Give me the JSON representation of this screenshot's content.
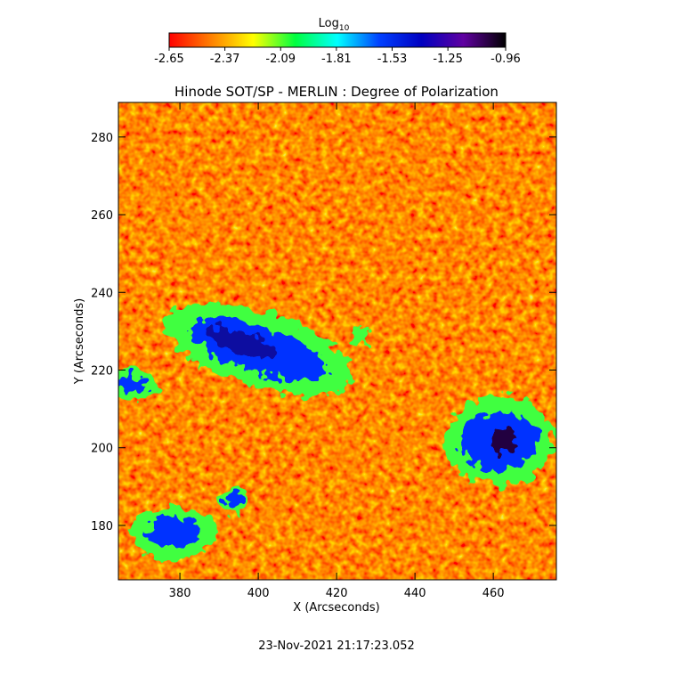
{
  "chart_data": {
    "type": "heatmap",
    "title": "Hinode SOT/SP - MERLIN : Degree of Polarization",
    "x_label": "X (Arcseconds)",
    "y_label": "Y (Arcseconds)",
    "xlim": [
      364.3,
      476.1
    ],
    "ylim": [
      166.0,
      288.9
    ],
    "xticks": [
      380,
      400,
      420,
      440,
      460
    ],
    "yticks": [
      180,
      200,
      220,
      240,
      260,
      280
    ],
    "colorbar": {
      "label": "Log",
      "label_subscript": "10",
      "lim": [
        -2.65,
        -0.96
      ],
      "ticks": [
        -2.65,
        -2.37,
        -2.09,
        -1.81,
        -1.53,
        -1.25,
        -0.96
      ],
      "colors": [
        "#ff0000",
        "#ff8000",
        "#ffff00",
        "#00ff40",
        "#00ffff",
        "#0040ff",
        "#0000c0",
        "#6000a0",
        "#000000"
      ]
    },
    "timestamp": "23-Nov-2021 21:17:23.052"
  }
}
